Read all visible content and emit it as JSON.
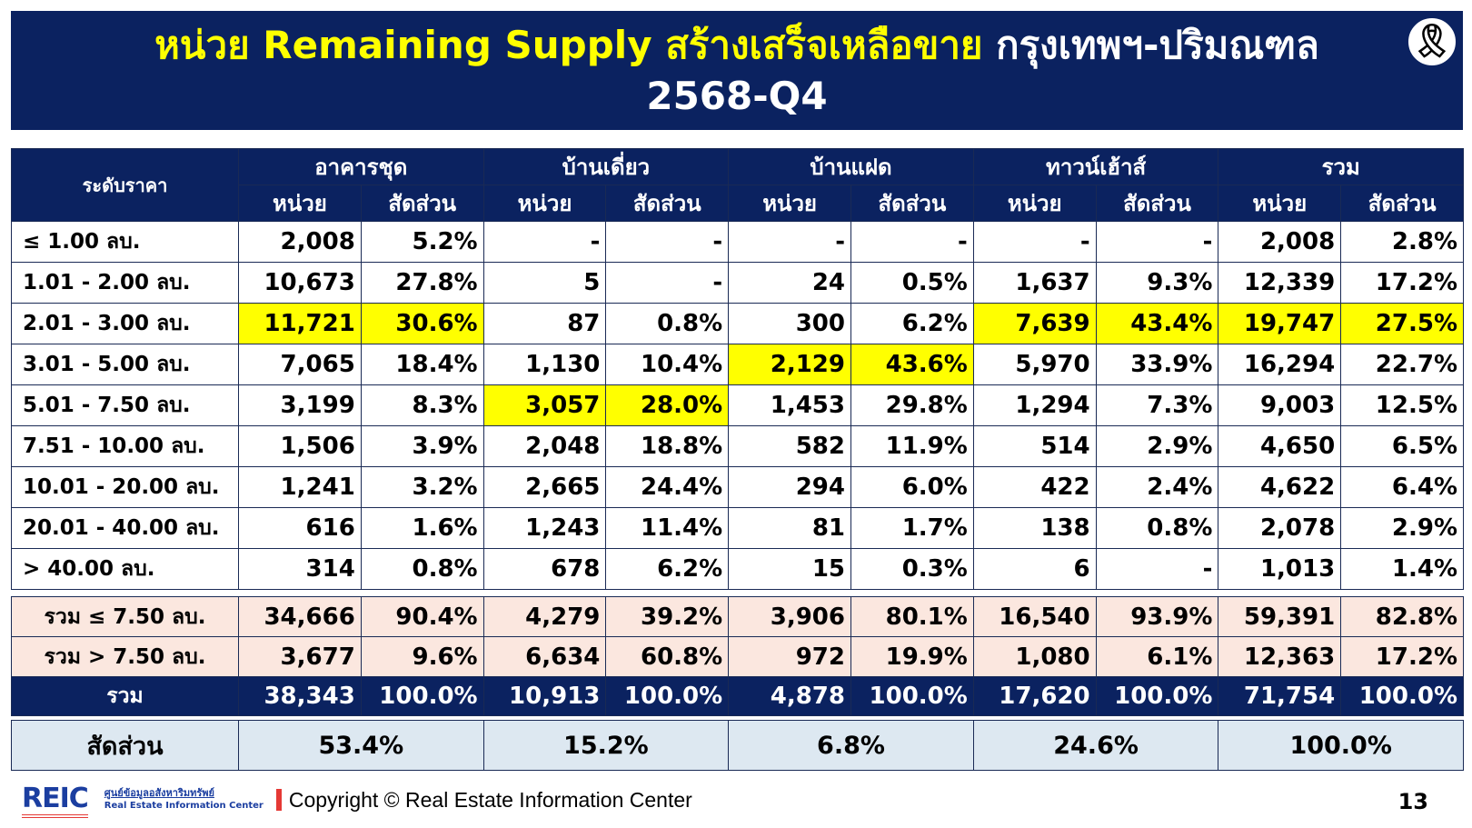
{
  "title": {
    "part1": "หน่วย Remaining Supply สร้างเสร็จเหลือขาย",
    "part2": "กรุงเทพฯ-ปริมณฑล",
    "period": "2568-Q4"
  },
  "header": {
    "price_level": "ระดับราคา",
    "groups": [
      "อาคารชุด",
      "บ้านเดี่ยว",
      "บ้านแฝด",
      "ทาวน์เฮ้าส์",
      "รวม"
    ],
    "unit": "หน่วย",
    "share": "สัดส่วน"
  },
  "highlight_color": "#ffff00",
  "rows": [
    {
      "label": "≤ 1.00 ลบ.",
      "cells": [
        "2,008",
        "5.2%",
        "-",
        "-",
        "-",
        "-",
        "-",
        "-",
        "2,008",
        "2.8%"
      ],
      "hl": []
    },
    {
      "label": "1.01 - 2.00 ลบ.",
      "cells": [
        "10,673",
        "27.8%",
        "5",
        "-",
        "24",
        "0.5%",
        "1,637",
        "9.3%",
        "12,339",
        "17.2%"
      ],
      "hl": []
    },
    {
      "label": "2.01 - 3.00 ลบ.",
      "cells": [
        "11,721",
        "30.6%",
        "87",
        "0.8%",
        "300",
        "6.2%",
        "7,639",
        "43.4%",
        "19,747",
        "27.5%"
      ],
      "hl": [
        0,
        1,
        6,
        7,
        8,
        9
      ]
    },
    {
      "label": "3.01 - 5.00 ลบ.",
      "cells": [
        "7,065",
        "18.4%",
        "1,130",
        "10.4%",
        "2,129",
        "43.6%",
        "5,970",
        "33.9%",
        "16,294",
        "22.7%"
      ],
      "hl": [
        4,
        5
      ]
    },
    {
      "label": "5.01 - 7.50 ลบ.",
      "cells": [
        "3,199",
        "8.3%",
        "3,057",
        "28.0%",
        "1,453",
        "29.8%",
        "1,294",
        "7.3%",
        "9,003",
        "12.5%"
      ],
      "hl": [
        2,
        3
      ]
    },
    {
      "label": "7.51 - 10.00 ลบ.",
      "cells": [
        "1,506",
        "3.9%",
        "2,048",
        "18.8%",
        "582",
        "11.9%",
        "514",
        "2.9%",
        "4,650",
        "6.5%"
      ],
      "hl": []
    },
    {
      "label": "10.01 - 20.00 ลบ.",
      "cells": [
        "1,241",
        "3.2%",
        "2,665",
        "24.4%",
        "294",
        "6.0%",
        "422",
        "2.4%",
        "4,622",
        "6.4%"
      ],
      "hl": []
    },
    {
      "label": "20.01 - 40.00 ลบ.",
      "cells": [
        "616",
        "1.6%",
        "1,243",
        "11.4%",
        "81",
        "1.7%",
        "138",
        "0.8%",
        "2,078",
        "2.9%"
      ],
      "hl": []
    },
    {
      "label": "> 40.00 ลบ.",
      "cells": [
        "314",
        "0.8%",
        "678",
        "6.2%",
        "15",
        "0.3%",
        "6",
        "-",
        "1,013",
        "1.4%"
      ],
      "hl": []
    }
  ],
  "summary": [
    {
      "label": "รวม ≤ 7.50 ลบ.",
      "cells": [
        "34,666",
        "90.4%",
        "4,279",
        "39.2%",
        "3,906",
        "80.1%",
        "16,540",
        "93.9%",
        "59,391",
        "82.8%"
      ]
    },
    {
      "label": "รวม > 7.50 ลบ.",
      "cells": [
        "3,677",
        "9.6%",
        "6,634",
        "60.8%",
        "972",
        "19.9%",
        "1,080",
        "6.1%",
        "12,363",
        "17.2%"
      ]
    }
  ],
  "total": {
    "label": "รวม",
    "cells": [
      "38,343",
      "100.0%",
      "10,913",
      "100.0%",
      "4,878",
      "100.0%",
      "17,620",
      "100.0%",
      "71,754",
      "100.0%"
    ]
  },
  "ratio": {
    "label": "สัดส่วน",
    "cells": [
      "53.4%",
      "15.2%",
      "6.8%",
      "24.6%",
      "100.0%"
    ]
  },
  "footer": {
    "logo": "REIC",
    "logo_thai": "ศูนย์ข้อมูลอสังหาริมทรัพย์",
    "logo_en": "Real Estate Information Center",
    "copyright": "Copyright © Real Estate Information Center",
    "page": "13"
  }
}
